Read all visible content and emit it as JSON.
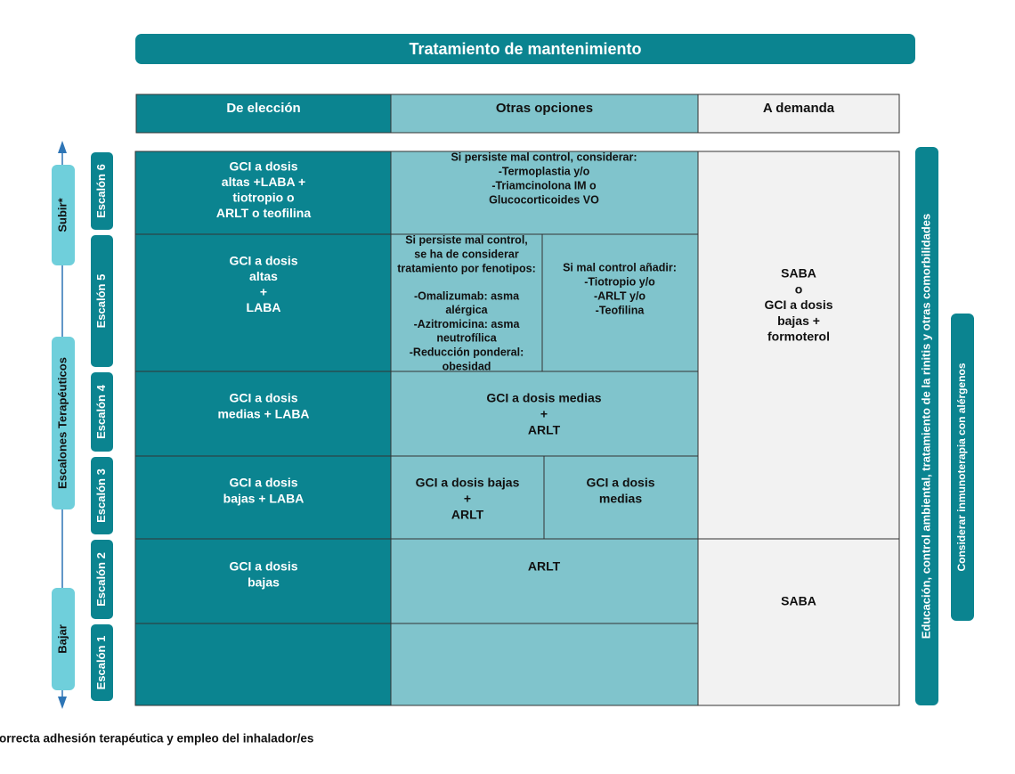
{
  "title": "Tratamiento de mantenimiento",
  "headers": [
    "De elección",
    "Otras opciones",
    "A demanda"
  ],
  "side_left": {
    "up": "Subir*",
    "middle": "Escalones Terapéuticos",
    "down": "Bajar"
  },
  "steps": [
    "Escalón 6",
    "Escalón 5",
    "Escalón 4",
    "Escalón 3",
    "Escalón 2",
    "Escalón 1"
  ],
  "cells": [
    {
      "lines": [
        "GCI a dosis",
        "altas +LABA +",
        "tiotropio o",
        "ARLT o teofilina"
      ]
    },
    {
      "lines": [
        "Si persiste mal control, considerar:",
        "-Termoplastia y/o",
        "-Triamcinolona IM o",
        "Glucocorticoides VO"
      ]
    },
    {
      "lines": [
        "GCI a dosis",
        "altas",
        "+",
        "LABA"
      ]
    },
    {
      "lines": [
        "Si persiste mal control,",
        "se ha de considerar",
        "tratamiento por fenotipos:"
      ]
    },
    {
      "lines": [
        "-Omalizumab: asma",
        "alérgica",
        "-Azitromicina: asma",
        "neutrofílica",
        "-Reducción ponderal:",
        "obesidad"
      ]
    },
    {
      "lines": [
        "Si mal control añadir:",
        "-Tiotropio y/o",
        "-ARLT y/o",
        "-Teofilina"
      ]
    },
    {
      "lines": [
        "GCI a dosis",
        "medias + LABA"
      ]
    },
    {
      "lines": [
        "GCI a dosis medias",
        "+",
        "ARLT"
      ]
    },
    {
      "lines": [
        "GCI a dosis",
        "bajas + LABA"
      ]
    },
    {
      "lines": [
        "GCI a dosis bajas",
        "+",
        "ARLT"
      ]
    },
    {
      "lines": [
        "GCI a dosis",
        "medias"
      ]
    },
    {
      "lines": [
        "GCI a dosis",
        "bajas"
      ]
    },
    {
      "lines": [
        "ARLT"
      ]
    },
    {
      "lines": [
        "SABA",
        "o",
        "GCI a dosis",
        "bajas +",
        "formoterol"
      ]
    },
    {
      "lines": [
        "SABA"
      ]
    }
  ],
  "side_right": [
    "Educación, control ambiental, tratamiento de la rinitis y otras comorbilidades",
    "Considerar inmunoterapia con alérgenos"
  ],
  "footnote": "*Tras confirmar la correcta adhesión terapéutica y empleo del inhalador/es"
}
